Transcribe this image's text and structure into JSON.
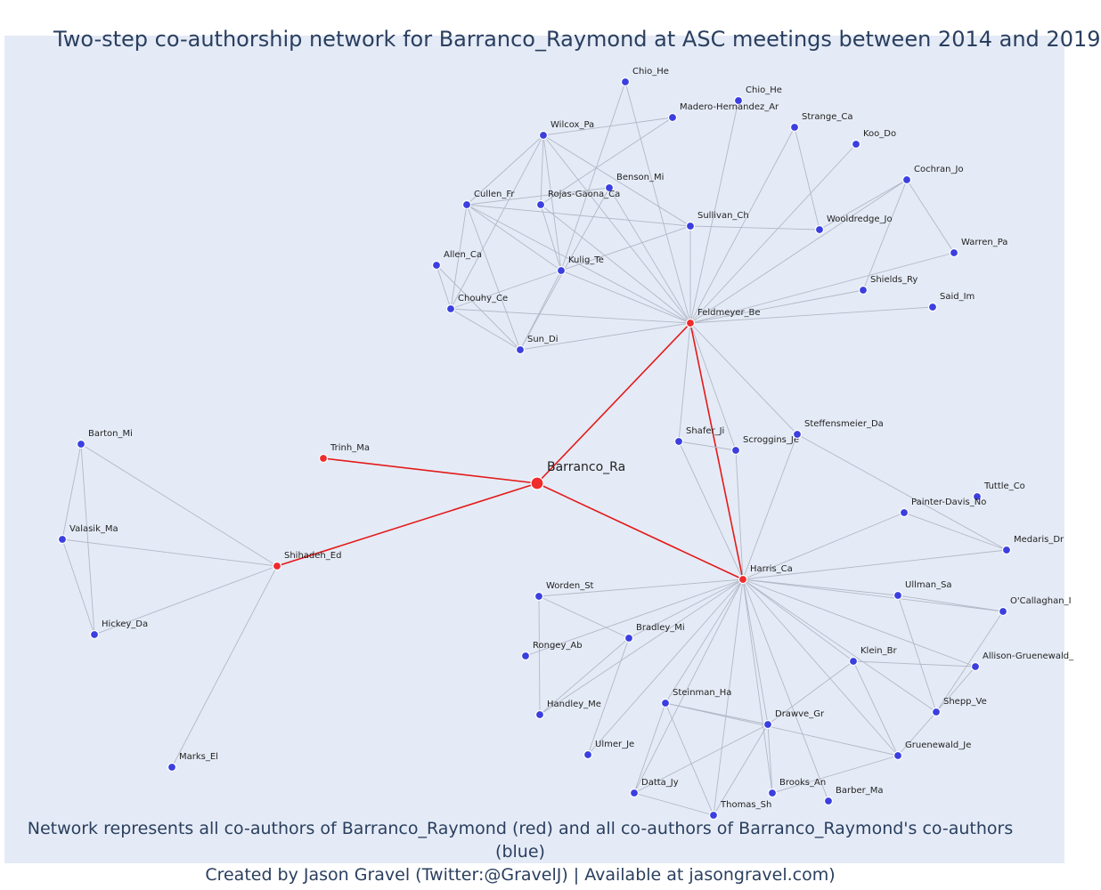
{
  "title": "Two-step co-authorship network for Barranco_Raymond at ASC meetings between 2014 and 2019",
  "footer": {
    "line1": "Network represents all co-authors of Barranco_Raymond (red) and all co-authors of Barranco_Raymond's co-authors (blue)",
    "line2": "Created by Jason Gravel (Twitter:@GravelJ) | Available at jasongravel.com)"
  },
  "colors": {
    "red": "#ef2b2b",
    "blue": "#3b3fe0",
    "edge": "#b3b8c7",
    "red_edge": "#e31a1a"
  },
  "nodes": [
    {
      "id": "Barranco_Ra",
      "group": "center"
    },
    {
      "id": "Trinh_Ma",
      "group": "red"
    },
    {
      "id": "Shihadeh_Ed",
      "group": "red"
    },
    {
      "id": "Feldmeyer_Be",
      "group": "red"
    },
    {
      "id": "Harris_Ca",
      "group": "red"
    },
    {
      "id": "Barton_Mi",
      "group": "blue"
    },
    {
      "id": "Valasik_Ma",
      "group": "blue"
    },
    {
      "id": "Hickey_Da",
      "group": "blue"
    },
    {
      "id": "Marks_El",
      "group": "blue"
    },
    {
      "id": "Chio_He",
      "group": "blue"
    },
    {
      "id": "Chio_He ",
      "group": "blue"
    },
    {
      "id": "Madero-Hernandez_Ar",
      "group": "blue"
    },
    {
      "id": "Wilcox_Pa",
      "group": "blue"
    },
    {
      "id": "Strange_Ca",
      "group": "blue"
    },
    {
      "id": "Koo_Do",
      "group": "blue"
    },
    {
      "id": "Benson_Mi",
      "group": "blue"
    },
    {
      "id": "Cochran_Jo",
      "group": "blue"
    },
    {
      "id": "Cullen_Fr",
      "group": "blue"
    },
    {
      "id": "Rojas-Gaona_Ca",
      "group": "blue"
    },
    {
      "id": "Sullivan_Ch",
      "group": "blue"
    },
    {
      "id": "Wooldredge_Jo",
      "group": "blue"
    },
    {
      "id": "Allen_Ca",
      "group": "blue"
    },
    {
      "id": "Kulig_Te",
      "group": "blue"
    },
    {
      "id": "Warren_Pa",
      "group": "blue"
    },
    {
      "id": "Shields_Ry",
      "group": "blue"
    },
    {
      "id": "Chouhy_Ce",
      "group": "blue"
    },
    {
      "id": "Said_Im",
      "group": "blue"
    },
    {
      "id": "Sun_Di",
      "group": "blue"
    },
    {
      "id": "Shafer_Ji",
      "group": "blue"
    },
    {
      "id": "Scroggins_Je",
      "group": "blue"
    },
    {
      "id": "Steffensmeier_Da",
      "group": "blue"
    },
    {
      "id": "Tuttle_Co",
      "group": "blue"
    },
    {
      "id": "Painter-Davis_No",
      "group": "blue"
    },
    {
      "id": "Medaris_Dr",
      "group": "blue"
    },
    {
      "id": "Worden_St",
      "group": "blue"
    },
    {
      "id": "Ullman_Sa",
      "group": "blue"
    },
    {
      "id": "O'Callaghan_I",
      "group": "blue"
    },
    {
      "id": "Bradley_Mi",
      "group": "blue"
    },
    {
      "id": "Rongey_Ab",
      "group": "blue"
    },
    {
      "id": "Klein_Br",
      "group": "blue"
    },
    {
      "id": "Allison-Gruenewald_",
      "group": "blue"
    },
    {
      "id": "Steinman_Ha",
      "group": "blue"
    },
    {
      "id": "Handley_Me",
      "group": "blue"
    },
    {
      "id": "Shepp_Ve",
      "group": "blue"
    },
    {
      "id": "Drawve_Gr",
      "group": "blue"
    },
    {
      "id": "Ulmer_Je",
      "group": "blue"
    },
    {
      "id": "Gruenewald_Je",
      "group": "blue"
    },
    {
      "id": "Datta_Jy",
      "group": "blue"
    },
    {
      "id": "Brooks_An",
      "group": "blue"
    },
    {
      "id": "Barber_Ma",
      "group": "blue"
    },
    {
      "id": "Thomas_Sh",
      "group": "blue"
    }
  ],
  "edges": [
    [
      "Barranco_Ra",
      "Trinh_Ma"
    ],
    [
      "Barranco_Ra",
      "Shihadeh_Ed"
    ],
    [
      "Barranco_Ra",
      "Feldmeyer_Be"
    ],
    [
      "Barranco_Ra",
      "Harris_Ca"
    ],
    [
      "Feldmeyer_Be",
      "Harris_Ca"
    ],
    [
      "Shihadeh_Ed",
      "Barton_Mi"
    ],
    [
      "Shihadeh_Ed",
      "Valasik_Ma"
    ],
    [
      "Shihadeh_Ed",
      "Hickey_Da"
    ],
    [
      "Shihadeh_Ed",
      "Marks_El"
    ],
    [
      "Barton_Mi",
      "Valasik_Ma"
    ],
    [
      "Barton_Mi",
      "Hickey_Da"
    ],
    [
      "Valasik_Ma",
      "Hickey_Da"
    ],
    [
      "Feldmeyer_Be",
      "Chio_He"
    ],
    [
      "Feldmeyer_Be",
      "Chio_He "
    ],
    [
      "Feldmeyer_Be",
      "Wilcox_Pa"
    ],
    [
      "Feldmeyer_Be",
      "Strange_Ca"
    ],
    [
      "Feldmeyer_Be",
      "Koo_Do"
    ],
    [
      "Feldmeyer_Be",
      "Benson_Mi"
    ],
    [
      "Feldmeyer_Be",
      "Cochran_Jo"
    ],
    [
      "Feldmeyer_Be",
      "Cullen_Fr"
    ],
    [
      "Feldmeyer_Be",
      "Rojas-Gaona_Ca"
    ],
    [
      "Feldmeyer_Be",
      "Sullivan_Ch"
    ],
    [
      "Feldmeyer_Be",
      "Kulig_Te"
    ],
    [
      "Feldmeyer_Be",
      "Warren_Pa"
    ],
    [
      "Feldmeyer_Be",
      "Shields_Ry"
    ],
    [
      "Feldmeyer_Be",
      "Chouhy_Ce"
    ],
    [
      "Feldmeyer_Be",
      "Said_Im"
    ],
    [
      "Feldmeyer_Be",
      "Sun_Di"
    ],
    [
      "Feldmeyer_Be",
      "Shafer_Ji"
    ],
    [
      "Feldmeyer_Be",
      "Scroggins_Je"
    ],
    [
      "Feldmeyer_Be",
      "Steffensmeier_Da"
    ],
    [
      "Chio_He",
      "Kulig_Te"
    ],
    [
      "Wilcox_Pa",
      "Madero-Hernandez_Ar"
    ],
    [
      "Wilcox_Pa",
      "Cullen_Fr"
    ],
    [
      "Wilcox_Pa",
      "Rojas-Gaona_Ca"
    ],
    [
      "Wilcox_Pa",
      "Kulig_Te"
    ],
    [
      "Wilcox_Pa",
      "Chouhy_Ce"
    ],
    [
      "Wilcox_Pa",
      "Sullivan_Ch"
    ],
    [
      "Madero-Hernandez_Ar",
      "Rojas-Gaona_Ca"
    ],
    [
      "Cullen_Fr",
      "Sullivan_Ch"
    ],
    [
      "Cullen_Fr",
      "Kulig_Te"
    ],
    [
      "Cullen_Fr",
      "Chouhy_Ce"
    ],
    [
      "Cullen_Fr",
      "Sun_Di"
    ],
    [
      "Cullen_Fr",
      "Benson_Mi"
    ],
    [
      "Rojas-Gaona_Ca",
      "Kulig_Te"
    ],
    [
      "Sullivan_Ch",
      "Wooldredge_Jo"
    ],
    [
      "Sullivan_Ch",
      "Kulig_Te"
    ],
    [
      "Strange_Ca",
      "Wooldredge_Jo"
    ],
    [
      "Cochran_Jo",
      "Wooldredge_Jo"
    ],
    [
      "Cochran_Jo",
      "Shields_Ry"
    ],
    [
      "Cochran_Jo",
      "Warren_Pa"
    ],
    [
      "Allen_Ca",
      "Chouhy_Ce"
    ],
    [
      "Allen_Ca",
      "Sun_Di"
    ],
    [
      "Kulig_Te",
      "Chouhy_Ce"
    ],
    [
      "Kulig_Te",
      "Sun_Di"
    ],
    [
      "Chouhy_Ce",
      "Sun_Di"
    ],
    [
      "Benson_Mi",
      "Sun_Di"
    ],
    [
      "Shafer_Ji",
      "Scroggins_Je"
    ],
    [
      "Shafer_Ji",
      "Harris_Ca"
    ],
    [
      "Scroggins_Je",
      "Harris_Ca"
    ],
    [
      "Steffensmeier_Da",
      "Harris_Ca"
    ],
    [
      "Steffensmeier_Da",
      "Medaris_Dr"
    ],
    [
      "Harris_Ca",
      "Painter-Davis_No"
    ],
    [
      "Harris_Ca",
      "Medaris_Dr"
    ],
    [
      "Harris_Ca",
      "Worden_St"
    ],
    [
      "Harris_Ca",
      "Ullman_Sa"
    ],
    [
      "Harris_Ca",
      "O'Callaghan_I"
    ],
    [
      "Harris_Ca",
      "Bradley_Mi"
    ],
    [
      "Harris_Ca",
      "Rongey_Ab"
    ],
    [
      "Harris_Ca",
      "Klein_Br"
    ],
    [
      "Harris_Ca",
      "Allison-Gruenewald_"
    ],
    [
      "Harris_Ca",
      "Steinman_Ha"
    ],
    [
      "Harris_Ca",
      "Handley_Me"
    ],
    [
      "Harris_Ca",
      "Shepp_Ve"
    ],
    [
      "Harris_Ca",
      "Drawve_Gr"
    ],
    [
      "Harris_Ca",
      "Ulmer_Je"
    ],
    [
      "Harris_Ca",
      "Gruenewald_Je"
    ],
    [
      "Harris_Ca",
      "Datta_Jy"
    ],
    [
      "Harris_Ca",
      "Brooks_An"
    ],
    [
      "Harris_Ca",
      "Barber_Ma"
    ],
    [
      "Harris_Ca",
      "Thomas_Sh"
    ],
    [
      "Worden_St",
      "Bradley_Mi"
    ],
    [
      "Worden_St",
      "Handley_Me"
    ],
    [
      "Bradley_Mi",
      "Handley_Me"
    ],
    [
      "Bradley_Mi",
      "Ulmer_Je"
    ],
    [
      "Ullman_Sa",
      "O'Callaghan_I"
    ],
    [
      "Ullman_Sa",
      "Shepp_Ve"
    ],
    [
      "Klein_Br",
      "Allison-Gruenewald_"
    ],
    [
      "Klein_Br",
      "Gruenewald_Je"
    ],
    [
      "Klein_Br",
      "Drawve_Gr"
    ],
    [
      "Allison-Gruenewald_",
      "Shepp_Ve"
    ],
    [
      "O'Callaghan_I",
      "Shepp_Ve"
    ],
    [
      "Shepp_Ve",
      "Gruenewald_Je"
    ],
    [
      "Steinman_Ha",
      "Drawve_Gr"
    ],
    [
      "Steinman_Ha",
      "Datta_Jy"
    ],
    [
      "Steinman_Ha",
      "Thomas_Sh"
    ],
    [
      "Steinman_Ha",
      "Gruenewald_Je"
    ],
    [
      "Drawve_Gr",
      "Datta_Jy"
    ],
    [
      "Drawve_Gr",
      "Brooks_An"
    ],
    [
      "Drawve_Gr",
      "Thomas_Sh"
    ],
    [
      "Gruenewald_Je",
      "Brooks_An"
    ],
    [
      "Datta_Jy",
      "Thomas_Sh"
    ],
    [
      "Painter-Davis_No",
      "Medaris_Dr"
    ]
  ]
}
